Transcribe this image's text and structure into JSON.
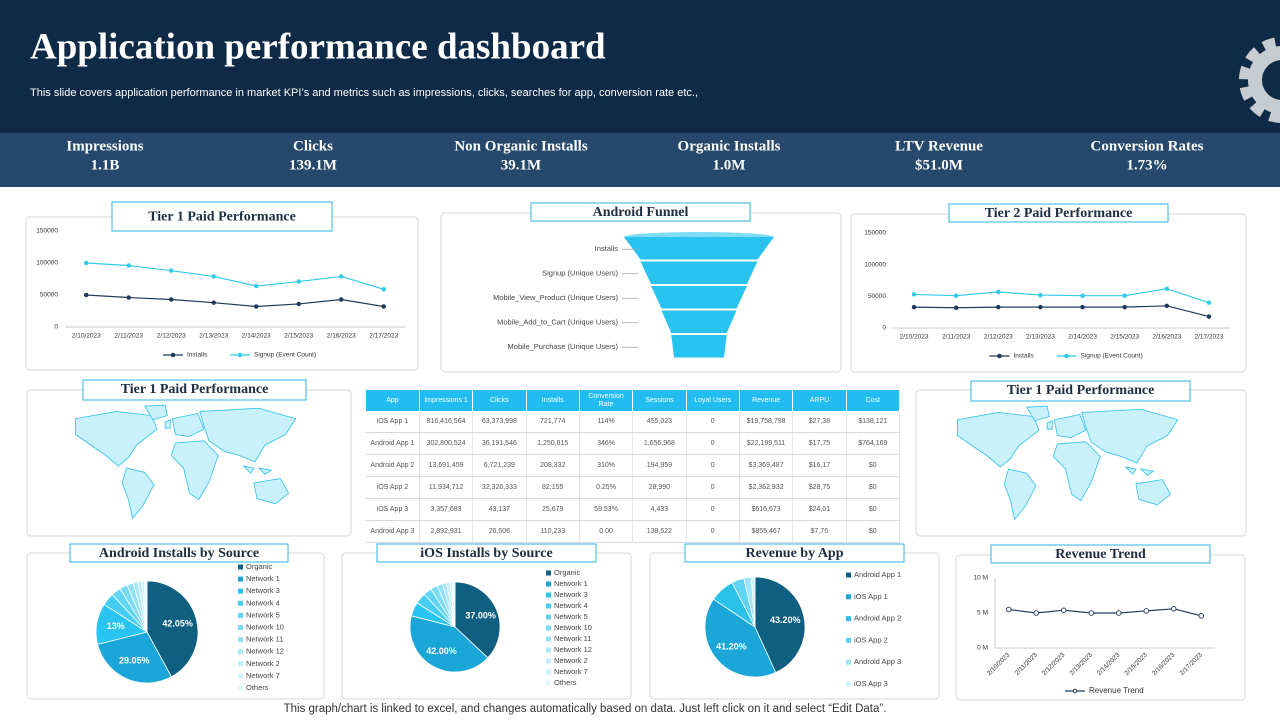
{
  "header": {
    "title": "Application performance dashboard",
    "subtitle": "This slide covers application performance in market KPI’s and metrics such as impressions, clicks, searches for app, conversion rate etc.,"
  },
  "kpis": [
    {
      "label": "Impressions",
      "value": "1.1B"
    },
    {
      "label": "Clicks",
      "value": "139.1M"
    },
    {
      "label": "Non Organic Installs",
      "value": "39.1M"
    },
    {
      "label": "Organic Installs",
      "value": "1.0M"
    },
    {
      "label": "LTV Revenue",
      "value": "$51.0M"
    },
    {
      "label": "Conversion Rates",
      "value": "1.73%"
    }
  ],
  "maps": [
    {
      "title": "Tier 1 Paid Performance"
    },
    {
      "title": "Tier 1 Paid Performance"
    }
  ],
  "table": {
    "columns": [
      "App",
      "Impressions 1",
      "Clicks",
      "Installs",
      "Conversion Rate",
      "Sessions",
      "Loyal Users",
      "Revenue",
      "ARPU",
      "Cost"
    ],
    "rows": [
      [
        "iOS App 1",
        "816,416,564",
        "63,373,998",
        "721,774",
        "114%",
        "455,023",
        "0",
        "$19,758,798",
        "$27,38",
        "$138,121"
      ],
      [
        "Android App 1",
        "302,800,524",
        "36,191,546",
        "1,250,815",
        "346%",
        "1,656,968",
        "0",
        "$22,199,511",
        "$17,75",
        "$764,169"
      ],
      [
        "Android App 2",
        "13,691,459",
        "6,721,239",
        "208,332",
        "310%",
        "194,959",
        "0",
        "$3,369,487",
        "$16,17",
        "$0"
      ],
      [
        "iOS App 2",
        "11,934,712",
        "32,326,333",
        "82,155",
        "0.25%",
        "28,990",
        "0",
        "$2,362,932",
        "$28,75",
        "$0"
      ],
      [
        "iOS App 3",
        "3,357,683",
        "43,137",
        "25,679",
        "59.53%",
        "4,433",
        "0",
        "$616,673",
        "$24,01",
        "$0"
      ],
      [
        "Android App 3",
        "2,892,931",
        "26,506",
        "110,233",
        "0.00",
        "138,522",
        "0",
        "$855,467",
        "$7,76",
        "$0"
      ]
    ]
  },
  "chart_data": [
    {
      "type": "line",
      "title": "Tier 1 Paid Performance",
      "categories": [
        "2/10/2023",
        "2/11/2023",
        "2/12/2023",
        "2/13/2023",
        "2/14/2023",
        "2/15/2023",
        "2/16/2023",
        "2/17/2023"
      ],
      "series": [
        {
          "name": "Installs",
          "color": "#1f3a5a",
          "values": [
            50000,
            46000,
            43000,
            38000,
            32000,
            36000,
            43000,
            32000
          ]
        },
        {
          "name": "Signup (Event Count)",
          "color": "#33c9e8",
          "values": [
            100000,
            96000,
            88000,
            79000,
            64000,
            71000,
            79000,
            59000
          ]
        }
      ],
      "ylim": [
        0,
        150000
      ],
      "yticks": [
        0,
        50000,
        100000,
        150000
      ],
      "grid": false
    },
    {
      "type": "funnel",
      "title": "Android Funnel",
      "categories": [
        "Installs",
        "Signup (Unique Users)",
        "Mobile_View_Product  (Unique Users)",
        "Mobile_Add_to_Cart  (Unique Users)",
        "Mobile_Purchase  (Unique Users)"
      ],
      "values": [
        100,
        78,
        64,
        50,
        37
      ],
      "color": "#29c3f0"
    },
    {
      "type": "line",
      "title": "Tier 2 Paid Performance",
      "categories": [
        "2/10/2023",
        "2/11/2023",
        "2/12/2023",
        "2/13/2023",
        "2/14/2023",
        "2/15/2023",
        "2/16/2023",
        "2/17/2023"
      ],
      "series": [
        {
          "name": "Installs",
          "color": "#1f3a5a",
          "values": [
            33000,
            32000,
            33000,
            33000,
            33000,
            33000,
            35000,
            18000
          ]
        },
        {
          "name": "Signup (Event Count)",
          "color": "#33c9e8",
          "values": [
            53000,
            51000,
            57000,
            52000,
            51000,
            51000,
            62000,
            40000
          ]
        }
      ],
      "ylim": [
        0,
        150000
      ],
      "yticks": [
        0,
        50000,
        100000,
        150000
      ],
      "grid": false
    },
    {
      "type": "pie",
      "title": "Android Installs by Source",
      "categories": [
        "Organic",
        "Network 1",
        "Network 3",
        "Network 4",
        "Network 5",
        "Network 10",
        "Network 11",
        "Network 12",
        "Network 2",
        "Network 7",
        "Others"
      ],
      "values": [
        42.05,
        29.05,
        13,
        4,
        3,
        2.5,
        2,
        1.5,
        1.2,
        0.9,
        0.8
      ],
      "value_labels": [
        "42.05%",
        "29.05%",
        "13%",
        null,
        null,
        null,
        null,
        null,
        null,
        null,
        null
      ],
      "colors": [
        "#0f5f80",
        "#1aa6d6",
        "#29c5f0",
        "#45cdf2",
        "#5fd5f3",
        "#79dcf5",
        "#92e2f6",
        "#a9e8f8",
        "#bfeefa",
        "#d3f3fb",
        "#e6f8fd"
      ]
    },
    {
      "type": "pie",
      "title": "iOS Installs by Source",
      "categories": [
        "Organic",
        "Network 1",
        "Network 3",
        "Network 4",
        "Network 5",
        "Network 10",
        "Network 11",
        "Network 12",
        "Network 2",
        "Network 7",
        "Others"
      ],
      "values": [
        37,
        42,
        5,
        4,
        3,
        2.5,
        2,
        1.5,
        1.2,
        1,
        0.8
      ],
      "value_labels": [
        "37.00%",
        "42.00%",
        null,
        null,
        null,
        null,
        null,
        null,
        null,
        null,
        null
      ],
      "colors": [
        "#0f5f80",
        "#1aa6d6",
        "#29c5f0",
        "#45cdf2",
        "#5fd5f3",
        "#79dcf5",
        "#92e2f6",
        "#a9e8f8",
        "#bfeefa",
        "#d3f3fb",
        "#e6f8fd"
      ]
    },
    {
      "type": "pie",
      "title": "Revenue by App",
      "categories": [
        "Android App 1",
        "iOS App 1",
        "Android App 2",
        "iOS App 2",
        "Android App 3",
        "iOS App 3"
      ],
      "values": [
        43.2,
        41.2,
        8,
        4,
        2.4,
        1.2
      ],
      "value_labels": [
        "43.20%",
        "41.20%",
        null,
        null,
        null,
        null
      ],
      "colors": [
        "#0f5f80",
        "#1aa6d6",
        "#2bc0e8",
        "#5fd3f0",
        "#9de5f7",
        "#d0f3fb"
      ]
    },
    {
      "type": "line",
      "title": "Revenue Trend",
      "categories": [
        "2/10/2023",
        "2/11/2023",
        "2/12/2023",
        "2/13/2023",
        "2/14/2023",
        "2/15/2023",
        "2/16/2023",
        "2/17/2023"
      ],
      "series": [
        {
          "name": "Revenue Trend",
          "color": "#1f3a5a",
          "values": [
            5500000,
            5000000,
            5400000,
            5000000,
            5000000,
            5300000,
            5600000,
            4600000
          ]
        }
      ],
      "ylim": [
        0,
        10000000
      ],
      "yticks": [
        {
          "value": 0,
          "label": "0 M"
        },
        {
          "value": 5000000,
          "label": "5 M"
        },
        {
          "value": 10000000,
          "label": "10 M"
        }
      ],
      "grid": false
    }
  ],
  "footer": "This graph/chart is linked to excel,  and changes automatically based on data. Just left click on it and select “Edit Data”."
}
